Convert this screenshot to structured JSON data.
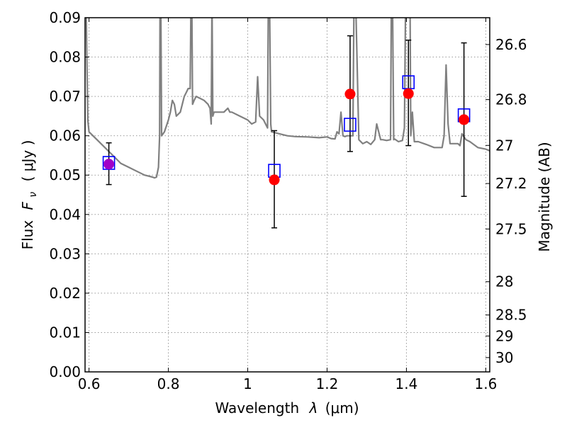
{
  "chart_data": {
    "type": "scatter",
    "xlabel": "Wavelength",
    "xlabel_symbol": "λ",
    "xlabel_unit": "(μm)",
    "ylabel": "Flux",
    "ylabel_symbol": "F",
    "ylabel_sub": "ν",
    "ylabel_unit": "( μJy )",
    "y2label": "Magnitude (AB)",
    "xlim": [
      0.59,
      1.61
    ],
    "ylim": [
      0.0,
      0.09
    ],
    "grid": true,
    "x_ticks": [
      0.6,
      0.8,
      1.0,
      1.2,
      1.4,
      1.6
    ],
    "x_tick_labels": [
      "0.6",
      "0.8",
      "1",
      "1.2",
      "1.4",
      "1.6"
    ],
    "y_ticks": [
      0.0,
      0.01,
      0.02,
      0.03,
      0.04,
      0.05,
      0.06,
      0.07,
      0.08,
      0.09
    ],
    "y_tick_labels": [
      "0.00",
      "0.01",
      "0.02",
      "0.03",
      "0.04",
      "0.05",
      "0.06",
      "0.07",
      "0.08",
      "0.09"
    ],
    "y2_ticks": [
      26.6,
      26.8,
      27,
      27.2,
      27.5,
      28,
      28.5,
      29,
      30
    ],
    "y2_tick_labels": [
      "26.6",
      "26.8",
      "27",
      "27.2",
      "27.5",
      "28",
      "28.5",
      "29",
      "30"
    ],
    "colors": {
      "model": "#808080",
      "observed": "#ff0000",
      "model_box": "#0000ff",
      "error_bar": "#000000",
      "grid": "#999999"
    },
    "series": [
      {
        "type": "line",
        "x": [
          0.59,
          0.593,
          0.597,
          0.6,
          0.61,
          0.62,
          0.64,
          0.66,
          0.68,
          0.7,
          0.72,
          0.74,
          0.76,
          0.765,
          0.77,
          0.775,
          0.778,
          0.779,
          0.781,
          0.783,
          0.79,
          0.8,
          0.805,
          0.81,
          0.815,
          0.82,
          0.83,
          0.835,
          0.84,
          0.845,
          0.85,
          0.855,
          0.857,
          0.859,
          0.861,
          0.865,
          0.87,
          0.88,
          0.89,
          0.9,
          0.905,
          0.908,
          0.91,
          0.912,
          0.915,
          0.92,
          0.94,
          0.95,
          0.955,
          0.96,
          0.98,
          1.0,
          1.01,
          1.02,
          1.025,
          1.03,
          1.04,
          1.045,
          1.05,
          1.052,
          1.055,
          1.058,
          1.06,
          1.08,
          1.1,
          1.12,
          1.15,
          1.18,
          1.2,
          1.21,
          1.22,
          1.225,
          1.23,
          1.235,
          1.24,
          1.245,
          1.25,
          1.265,
          1.268,
          1.272,
          1.28,
          1.29,
          1.3,
          1.31,
          1.32,
          1.325,
          1.33,
          1.335,
          1.34,
          1.35,
          1.36,
          1.362,
          1.365,
          1.368,
          1.37,
          1.38,
          1.39,
          1.395,
          1.398,
          1.402,
          1.405,
          1.407,
          1.409,
          1.411,
          1.415,
          1.42,
          1.425,
          1.43,
          1.45,
          1.47,
          1.49,
          1.495,
          1.5,
          1.505,
          1.51,
          1.52,
          1.53,
          1.535,
          1.54,
          1.55,
          1.56,
          1.58,
          1.6,
          1.61
        ],
        "y": [
          0.095,
          0.09,
          0.064,
          0.061,
          0.06,
          0.059,
          0.057,
          0.055,
          0.053,
          0.052,
          0.051,
          0.05,
          0.0495,
          0.0493,
          0.0495,
          0.052,
          0.06,
          0.095,
          0.095,
          0.06,
          0.061,
          0.064,
          0.066,
          0.069,
          0.068,
          0.065,
          0.066,
          0.068,
          0.07,
          0.071,
          0.072,
          0.072,
          0.095,
          0.095,
          0.068,
          0.069,
          0.07,
          0.0695,
          0.069,
          0.068,
          0.067,
          0.063,
          0.095,
          0.065,
          0.066,
          0.066,
          0.066,
          0.067,
          0.066,
          0.066,
          0.065,
          0.064,
          0.063,
          0.0635,
          0.075,
          0.065,
          0.064,
          0.063,
          0.062,
          0.095,
          0.095,
          0.063,
          0.061,
          0.0605,
          0.06,
          0.0598,
          0.0597,
          0.0595,
          0.0597,
          0.0593,
          0.0592,
          0.061,
          0.0605,
          0.066,
          0.06,
          0.0598,
          0.06,
          0.06,
          0.095,
          0.095,
          0.059,
          0.058,
          0.0585,
          0.0578,
          0.059,
          0.063,
          0.061,
          0.059,
          0.059,
          0.0588,
          0.059,
          0.095,
          0.095,
          0.059,
          0.0592,
          0.0585,
          0.0588,
          0.062,
          0.095,
          0.095,
          0.095,
          0.095,
          0.095,
          0.06,
          0.066,
          0.0585,
          0.0585,
          0.0585,
          0.0578,
          0.057,
          0.057,
          0.06,
          0.078,
          0.063,
          0.058,
          0.058,
          0.058,
          0.0575,
          0.0605,
          0.059,
          0.0585,
          0.057,
          0.0566,
          0.0562
        ]
      },
      {
        "type": "errorbar",
        "x": [
          0.65,
          1.067,
          1.258,
          1.405,
          1.545
        ],
        "y": [
          0.0528,
          0.0488,
          0.0706,
          0.0707,
          0.0641
        ],
        "yerr_low": [
          0.0476,
          0.0366,
          0.056,
          0.0575,
          0.0446
        ],
        "yerr_high": [
          0.0582,
          0.0613,
          0.0854,
          0.0843,
          0.0836
        ]
      },
      {
        "type": "marker_square",
        "x": [
          0.65,
          1.067,
          1.258,
          1.405,
          1.545
        ],
        "y": [
          0.0531,
          0.0511,
          0.0628,
          0.0736,
          0.0652
        ]
      }
    ]
  }
}
